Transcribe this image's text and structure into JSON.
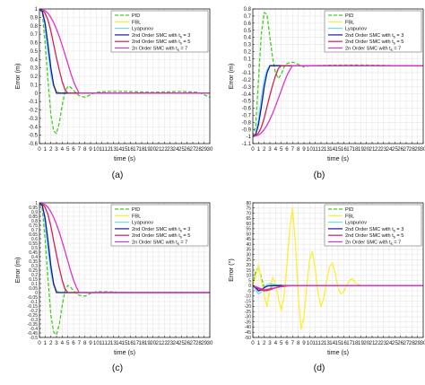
{
  "figure": {
    "panel_labels": [
      "(a)",
      "(b)",
      "(c)",
      "(d)"
    ]
  },
  "legend_entries": [
    {
      "prefix": "PID",
      "sub": "",
      "suffix": ""
    },
    {
      "prefix": "FBL",
      "sub": "",
      "suffix": ""
    },
    {
      "prefix": "Lyapunov",
      "sub": "",
      "suffix": ""
    },
    {
      "prefix": "2nd Order SMC with t",
      "sub": "s",
      "suffix": " = 3"
    },
    {
      "prefix": "2nd Order SMC with t",
      "sub": "s",
      "suffix": " = 5"
    },
    {
      "prefix": "2n Order SMC with t",
      "sub": "s",
      "suffix": " = 7"
    }
  ],
  "colors": {
    "PID": "#44cc22",
    "FBL": "#ffee33",
    "Lyapunov": "#66ddff",
    "smc3": "#1a1a99",
    "smc5": "#cc2255",
    "smc7": "#dd33cc",
    "grid": "#e6e6e6",
    "axis": "#000000"
  },
  "chart_data": [
    {
      "type": "line",
      "panel_label": "(a)",
      "xlabel": "time (s)",
      "ylabel": "Error (m)",
      "xlim": [
        0,
        30
      ],
      "ylim": [
        -0.6,
        1.0
      ],
      "xticks": [
        0,
        1,
        2,
        3,
        4,
        5,
        6,
        7,
        8,
        9,
        10,
        11,
        12,
        13,
        14,
        15,
        16,
        17,
        18,
        19,
        20,
        21,
        22,
        23,
        24,
        25,
        26,
        27,
        28,
        29,
        30
      ],
      "yticks": [
        -0.6,
        -0.5,
        -0.4,
        -0.3,
        -0.2,
        -0.1,
        0,
        0.1,
        0.2,
        0.3,
        0.4,
        0.5,
        0.6,
        0.7,
        0.8,
        0.9,
        1
      ],
      "ytick_labels": [
        "-0.6",
        "-0.5",
        "-0.4",
        "-0.3",
        "-0.2",
        "-0.1",
        "0",
        "0.1",
        "0.2",
        "0.3",
        "0.4",
        "0.5",
        "0.6",
        "0.7",
        "0.8",
        "0.9",
        "1"
      ],
      "grid": true,
      "legend_position": "top-right",
      "series": [
        {
          "name": "PID",
          "style": "dashed",
          "x": [
            0,
            0.5,
            1,
            1.5,
            2,
            2.5,
            3,
            3.5,
            4,
            4.5,
            5,
            5.5,
            6,
            6.5,
            7,
            8,
            9,
            10,
            12,
            15,
            20,
            25,
            28,
            30
          ],
          "y": [
            1,
            0.95,
            0.6,
            0.15,
            -0.25,
            -0.45,
            -0.48,
            -0.35,
            -0.15,
            0.02,
            0.08,
            0.07,
            0.03,
            0,
            -0.03,
            -0.05,
            -0.02,
            0.01,
            0.02,
            0.02,
            0.01,
            0.02,
            0.01,
            -0.05
          ]
        },
        {
          "name": "FBL",
          "x": [
            0,
            0.5,
            1,
            1.5,
            2,
            2.5,
            3,
            3.5,
            4,
            5,
            30
          ],
          "y": [
            1,
            0.98,
            0.8,
            0.5,
            0.25,
            0.1,
            0.03,
            0.01,
            0,
            0,
            0
          ]
        },
        {
          "name": "Lyapunov",
          "x": [
            0,
            0.5,
            1,
            1.5,
            2,
            2.5,
            3,
            3.5,
            4,
            5,
            30
          ],
          "y": [
            1,
            0.97,
            0.78,
            0.48,
            0.22,
            0.08,
            0.02,
            0,
            0,
            0,
            0
          ]
        },
        {
          "name": "2nd Order SMC with ts = 3",
          "x": [
            0,
            0.5,
            1,
            1.5,
            2,
            2.5,
            3,
            30
          ],
          "y": [
            1,
            0.97,
            0.83,
            0.58,
            0.3,
            0.1,
            0,
            0
          ]
        },
        {
          "name": "2nd Order SMC with ts = 5",
          "x": [
            0,
            0.5,
            1,
            1.5,
            2,
            2.5,
            3,
            3.5,
            4,
            4.5,
            5,
            30
          ],
          "y": [
            1,
            0.99,
            0.95,
            0.87,
            0.74,
            0.58,
            0.42,
            0.27,
            0.14,
            0.04,
            0,
            0
          ]
        },
        {
          "name": "2n Order SMC with ts = 7",
          "x": [
            0,
            1,
            1.5,
            2,
            2.5,
            3,
            3.5,
            4,
            4.5,
            5,
            5.5,
            6,
            6.5,
            7,
            30
          ],
          "y": [
            1,
            0.98,
            0.95,
            0.9,
            0.84,
            0.76,
            0.67,
            0.57,
            0.46,
            0.35,
            0.24,
            0.14,
            0.06,
            0,
            0
          ]
        }
      ]
    },
    {
      "type": "line",
      "panel_label": "(b)",
      "xlabel": "time (s)",
      "ylabel": "Error (m)",
      "xlim": [
        0,
        30
      ],
      "ylim": [
        -1.1,
        0.8
      ],
      "xticks": [
        0,
        1,
        2,
        3,
        4,
        5,
        6,
        7,
        8,
        9,
        10,
        11,
        12,
        13,
        14,
        15,
        16,
        17,
        18,
        19,
        20,
        21,
        22,
        23,
        24,
        25,
        26,
        27,
        28,
        29,
        30
      ],
      "yticks": [
        -1.1,
        -1,
        -0.9,
        -0.8,
        -0.7,
        -0.6,
        -0.5,
        -0.4,
        -0.3,
        -0.2,
        -0.1,
        0,
        0.1,
        0.2,
        0.3,
        0.4,
        0.5,
        0.6,
        0.7,
        0.8
      ],
      "ytick_labels": [
        "-1.1",
        "-1",
        "-0.9",
        "-0.8",
        "-0.7",
        "-0.6",
        "-0.5",
        "-0.4",
        "-0.3",
        "-0.2",
        "-0.1",
        "0",
        "0.1",
        "0.2",
        "0.3",
        "0.4",
        "0.5",
        "0.6",
        "0.7",
        "0.8"
      ],
      "grid": true,
      "legend_position": "top-right",
      "series": [
        {
          "name": "PID",
          "style": "dashed",
          "x": [
            0,
            0.5,
            1,
            1.5,
            2,
            2.5,
            3,
            3.5,
            4,
            4.5,
            5,
            5.5,
            6,
            7,
            8,
            9,
            10,
            15,
            20,
            25,
            30
          ],
          "y": [
            -1,
            -0.85,
            -0.2,
            0.45,
            0.75,
            0.72,
            0.4,
            0.1,
            -0.1,
            -0.18,
            -0.12,
            -0.02,
            0.03,
            0.05,
            0.02,
            -0.02,
            0,
            0.01,
            0.01,
            0,
            0
          ]
        },
        {
          "name": "FBL",
          "x": [
            0,
            0.5,
            1,
            1.5,
            2,
            2.5,
            3,
            3.5,
            4,
            30
          ],
          "y": [
            -1,
            -0.98,
            -0.8,
            -0.5,
            -0.25,
            -0.08,
            0,
            0,
            0,
            0
          ]
        },
        {
          "name": "Lyapunov",
          "x": [
            0,
            0.5,
            1,
            1.5,
            2,
            2.5,
            3,
            3.5,
            30
          ],
          "y": [
            -1,
            -0.97,
            -0.76,
            -0.45,
            -0.2,
            -0.06,
            0,
            0,
            0
          ]
        },
        {
          "name": "2nd Order SMC with ts = 3",
          "x": [
            0,
            0.5,
            1,
            1.5,
            2,
            2.5,
            3,
            30
          ],
          "y": [
            -1,
            -0.97,
            -0.83,
            -0.58,
            -0.3,
            -0.1,
            0,
            0
          ]
        },
        {
          "name": "2nd Order SMC with ts = 5",
          "x": [
            0,
            0.5,
            1,
            1.5,
            2,
            2.5,
            3,
            3.5,
            4,
            4.5,
            5,
            30
          ],
          "y": [
            -1,
            -0.99,
            -0.95,
            -0.87,
            -0.74,
            -0.58,
            -0.42,
            -0.27,
            -0.14,
            -0.04,
            0,
            0
          ]
        },
        {
          "name": "2n Order SMC with ts = 7",
          "x": [
            0,
            1,
            1.5,
            2,
            2.5,
            3,
            3.5,
            4,
            4.5,
            5,
            5.5,
            6,
            6.5,
            7,
            30
          ],
          "y": [
            -1,
            -0.98,
            -0.95,
            -0.9,
            -0.84,
            -0.76,
            -0.67,
            -0.57,
            -0.46,
            -0.35,
            -0.24,
            -0.14,
            -0.06,
            0,
            0
          ]
        }
      ]
    },
    {
      "type": "line",
      "panel_label": "(c)",
      "xlabel": "time (s)",
      "ylabel": "Error (m)",
      "xlim": [
        0,
        30
      ],
      "ylim": [
        -0.5,
        1.0
      ],
      "xticks": [
        0,
        1,
        2,
        3,
        4,
        5,
        6,
        7,
        8,
        9,
        10,
        11,
        12,
        13,
        14,
        15,
        16,
        17,
        18,
        19,
        20,
        21,
        22,
        23,
        24,
        25,
        26,
        27,
        28,
        29,
        30
      ],
      "yticks": [
        -0.5,
        -0.45,
        -0.4,
        -0.35,
        -0.3,
        -0.25,
        -0.2,
        -0.15,
        -0.1,
        -0.05,
        0,
        0.05,
        0.1,
        0.15,
        0.2,
        0.25,
        0.3,
        0.35,
        0.4,
        0.45,
        0.5,
        0.55,
        0.6,
        0.65,
        0.7,
        0.75,
        0.8,
        0.85,
        0.9,
        0.95,
        1
      ],
      "ytick_labels": [
        "-0.5",
        "-0.45",
        "-0.4",
        "-0.35",
        "-0.3",
        "-0.25",
        "-0.2",
        "-0.15",
        "-0.1",
        "-0.05",
        "0",
        "0.05",
        "0.1",
        "0.15",
        "0.2",
        "0.25",
        "0.3",
        "0.35",
        "0.4",
        "0.45",
        "0.5",
        "0.55",
        "0.6",
        "0.65",
        "0.7",
        "0.75",
        "0.8",
        "0.85",
        "0.9",
        "0.95",
        "1"
      ],
      "grid": true,
      "legend_position": "top-right",
      "series": [
        {
          "name": "PID",
          "style": "dashed",
          "x": [
            0,
            0.5,
            1,
            1.5,
            2,
            2.5,
            3,
            3.5,
            4,
            4.5,
            5,
            5.5,
            6,
            6.5,
            7,
            8,
            9,
            10,
            12,
            15,
            20,
            30
          ],
          "y": [
            1,
            0.93,
            0.6,
            0.15,
            -0.25,
            -0.44,
            -0.47,
            -0.35,
            -0.15,
            0.02,
            0.08,
            0.06,
            0.02,
            -0.01,
            -0.03,
            -0.04,
            -0.01,
            0.01,
            0.01,
            0,
            0,
            0
          ]
        },
        {
          "name": "FBL",
          "x": [
            0,
            0.5,
            1,
            1.5,
            2,
            2.5,
            3,
            3.5,
            4,
            5,
            30
          ],
          "y": [
            1,
            0.98,
            0.8,
            0.5,
            0.25,
            0.1,
            0.03,
            0.01,
            0,
            0,
            0
          ]
        },
        {
          "name": "Lyapunov",
          "x": [
            0,
            0.5,
            1,
            1.5,
            2,
            2.5,
            3,
            3.5,
            4,
            5,
            30
          ],
          "y": [
            1,
            0.97,
            0.78,
            0.48,
            0.22,
            0.08,
            0.02,
            0,
            0,
            0,
            0
          ]
        },
        {
          "name": "2nd Order SMC with ts = 3",
          "x": [
            0,
            0.5,
            1,
            1.5,
            2,
            2.5,
            3,
            30
          ],
          "y": [
            1,
            0.97,
            0.83,
            0.58,
            0.3,
            0.1,
            0,
            0
          ]
        },
        {
          "name": "2nd Order SMC with ts = 5",
          "x": [
            0,
            0.5,
            1,
            1.5,
            2,
            2.5,
            3,
            3.5,
            4,
            4.5,
            5,
            30
          ],
          "y": [
            1,
            0.99,
            0.95,
            0.87,
            0.74,
            0.58,
            0.42,
            0.27,
            0.14,
            0.04,
            0,
            0
          ]
        },
        {
          "name": "2n Order SMC with ts = 7",
          "x": [
            0,
            1,
            1.5,
            2,
            2.5,
            3,
            3.5,
            4,
            4.5,
            5,
            5.5,
            6,
            6.5,
            7,
            30
          ],
          "y": [
            1,
            0.98,
            0.95,
            0.9,
            0.84,
            0.76,
            0.67,
            0.57,
            0.46,
            0.35,
            0.24,
            0.14,
            0.06,
            0,
            0
          ]
        }
      ]
    },
    {
      "type": "line",
      "panel_label": "(d)",
      "xlabel": "time (s)",
      "ylabel": "Error (°)",
      "xlim": [
        0,
        30
      ],
      "ylim": [
        -50,
        80
      ],
      "xticks": [
        0,
        1,
        2,
        3,
        4,
        5,
        6,
        7,
        8,
        9,
        10,
        11,
        12,
        13,
        14,
        15,
        16,
        17,
        18,
        19,
        20,
        21,
        22,
        23,
        24,
        25,
        26,
        27,
        28,
        29,
        30
      ],
      "yticks": [
        -50,
        -45,
        -40,
        -35,
        -30,
        -25,
        -20,
        -15,
        -10,
        -5,
        0,
        5,
        10,
        15,
        20,
        25,
        30,
        35,
        40,
        45,
        50,
        55,
        60,
        65,
        70,
        75,
        80
      ],
      "ytick_labels": [
        "-50",
        "-45",
        "-40",
        "-35",
        "-30",
        "-25",
        "-20",
        "-15",
        "-10",
        "-5",
        "0",
        "5",
        "10",
        "15",
        "20",
        "25",
        "30",
        "35",
        "40",
        "45",
        "50",
        "55",
        "60",
        "65",
        "70",
        "75",
        "80"
      ],
      "grid": true,
      "legend_position": "top-right",
      "series": [
        {
          "name": "PID",
          "style": "dashed",
          "x": [
            0,
            0.5,
            1,
            1.5,
            2,
            2.5,
            3,
            3.5,
            4,
            5,
            6,
            30
          ],
          "y": [
            0,
            14,
            18,
            8,
            -2,
            -5,
            -3,
            0,
            1,
            0.5,
            0,
            0
          ]
        },
        {
          "name": "FBL",
          "x": [
            0,
            0.5,
            1,
            1.5,
            2,
            2.5,
            3,
            3.5,
            4,
            4.5,
            5,
            5.5,
            6,
            6.5,
            7,
            7.5,
            8,
            8.5,
            9,
            9.5,
            10,
            10.5,
            11,
            11.5,
            12,
            12.5,
            13,
            13.5,
            14,
            14.5,
            15,
            15.5,
            16,
            16.5,
            17,
            17.5,
            18,
            19,
            20,
            30
          ],
          "y": [
            0,
            9,
            20,
            5,
            -10,
            -20,
            -2,
            8,
            2,
            -12,
            -24,
            -10,
            20,
            55,
            75,
            40,
            -10,
            -42,
            -30,
            0,
            25,
            33,
            15,
            -8,
            -20,
            -12,
            5,
            18,
            22,
            12,
            -2,
            -8,
            -6,
            0,
            5,
            7,
            3,
            0,
            0,
            0
          ]
        },
        {
          "name": "Lyapunov",
          "x": [
            0,
            0.5,
            1,
            1.5,
            2,
            2.5,
            3,
            4,
            5,
            30
          ],
          "y": [
            0,
            -4,
            -8,
            -6,
            -2,
            1,
            2,
            1,
            0,
            0
          ]
        },
        {
          "name": "2nd Order SMC with ts = 3",
          "x": [
            0,
            0.5,
            1,
            1.5,
            2,
            2.5,
            3,
            4,
            30
          ],
          "y": [
            0,
            -2,
            -5,
            -4,
            -2,
            -0.5,
            0,
            0,
            0
          ]
        },
        {
          "name": "2nd Order SMC with ts = 5",
          "x": [
            0,
            1,
            2,
            3,
            4,
            5,
            6,
            30
          ],
          "y": [
            0,
            -3,
            -5,
            -4,
            -2,
            -0.5,
            0,
            0
          ]
        },
        {
          "name": "2n Order SMC with ts = 7",
          "x": [
            0,
            1,
            2,
            3,
            4,
            5,
            6,
            7,
            30
          ],
          "y": [
            0,
            -2,
            -4,
            -3,
            -2,
            -1,
            -0.3,
            0,
            0
          ]
        }
      ]
    }
  ]
}
